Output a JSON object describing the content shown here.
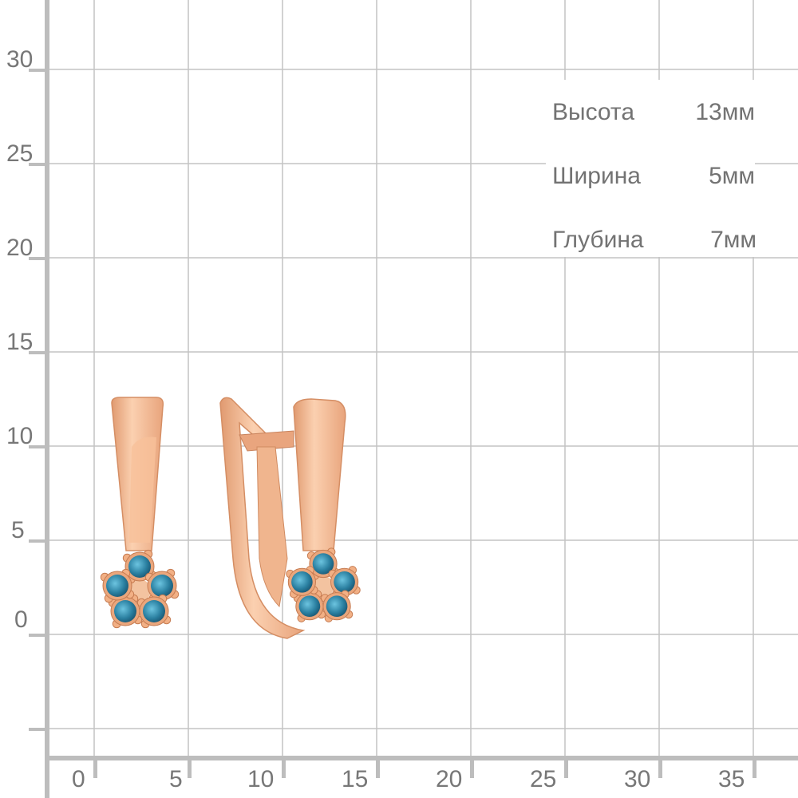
{
  "grid": {
    "y_ticks": [
      "30",
      "25",
      "20",
      "15",
      "10",
      "5",
      "0"
    ],
    "x_ticks": [
      "0",
      "5",
      "10",
      "15",
      "20",
      "25",
      "30",
      "35"
    ],
    "line_color": "#c3c3c3",
    "axis_color": "#bdbdbd",
    "text_color": "#777777"
  },
  "specs": [
    {
      "label": "Высота",
      "value": "13мм"
    },
    {
      "label": "Ширина",
      "value": "5мм"
    },
    {
      "label": "Глубина",
      "value": "7мм"
    }
  ],
  "product": {
    "metal_color": "#f0b088",
    "stone_color": "#2a7fa0"
  }
}
